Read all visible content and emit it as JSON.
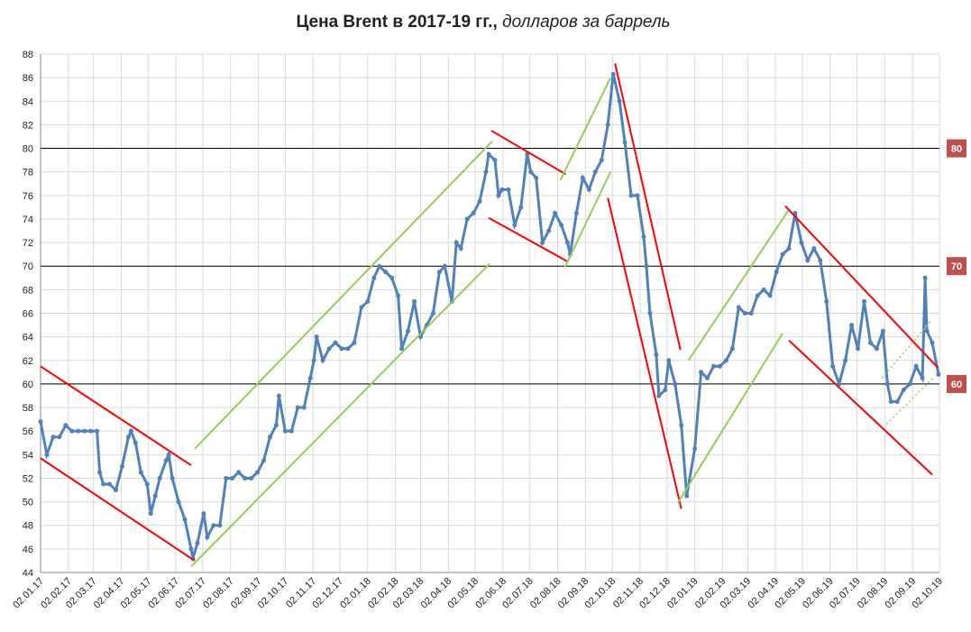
{
  "chart_data": {
    "type": "line",
    "title": "Цена Brent в 2017-19 гг.,",
    "subtitle": "долларов за баррель",
    "x": [
      "02.01.17",
      "09.01.17",
      "16.01.17",
      "23.01.17",
      "30.01.17",
      "06.02.17",
      "13.02.17",
      "20.02.17",
      "27.02.17",
      "06.03.17",
      "09.03.17",
      "13.03.17",
      "20.03.17",
      "27.03.17",
      "03.04.17",
      "10.04.17",
      "13.04.17",
      "18.04.17",
      "24.04.17",
      "01.05.17",
      "05.05.17",
      "10.05.17",
      "15.05.17",
      "22.05.17",
      "25.05.17",
      "29.05.17",
      "05.06.17",
      "12.06.17",
      "19.06.17",
      "21.06.17",
      "26.06.17",
      "03.07.17",
      "07.07.17",
      "14.07.17",
      "21.07.17",
      "28.07.17",
      "04.08.17",
      "11.08.17",
      "18.08.17",
      "25.08.17",
      "01.09.17",
      "08.09.17",
      "15.09.17",
      "22.09.17",
      "25.09.17",
      "02.10.17",
      "09.10.17",
      "16.10.17",
      "23.10.17",
      "30.10.17",
      "03.11.17",
      "06.11.17",
      "13.11.17",
      "20.11.17",
      "27.11.17",
      "04.12.17",
      "11.12.17",
      "18.12.17",
      "26.12.17",
      "02.01.18",
      "09.01.18",
      "15.01.18",
      "22.01.18",
      "29.01.18",
      "05.02.18",
      "09.02.18",
      "16.02.18",
      "23.02.18",
      "02.03.18",
      "09.03.18",
      "16.03.18",
      "23.03.18",
      "29.03.18",
      "06.04.18",
      "11.04.18",
      "16.04.18",
      "23.04.18",
      "30.04.18",
      "07.05.18",
      "14.05.18",
      "17.05.18",
      "24.05.18",
      "28.05.18",
      "01.06.18",
      "08.06.18",
      "15.06.18",
      "22.06.18",
      "29.06.18",
      "03.07.18",
      "09.07.18",
      "16.07.18",
      "23.07.18",
      "30.07.18",
      "06.08.18",
      "13.08.18",
      "16.08.18",
      "23.08.18",
      "30.08.18",
      "06.09.18",
      "13.09.18",
      "20.09.18",
      "27.09.18",
      "03.10.18",
      "10.10.18",
      "16.10.18",
      "23.10.18",
      "30.10.18",
      "06.11.18",
      "09.11.18",
      "13.11.18",
      "20.11.18",
      "23.11.18",
      "30.11.18",
      "04.12.18",
      "11.12.18",
      "18.12.18",
      "24.12.18",
      "02.01.19",
      "09.01.19",
      "16.01.19",
      "23.01.19",
      "30.01.19",
      "06.02.19",
      "13.02.19",
      "20.02.19",
      "27.02.19",
      "06.03.19",
      "13.03.19",
      "20.03.19",
      "27.03.19",
      "03.04.19",
      "10.04.19",
      "17.04.19",
      "24.04.19",
      "01.05.19",
      "08.05.19",
      "15.05.19",
      "22.05.19",
      "29.05.19",
      "05.06.19",
      "12.06.19",
      "19.06.19",
      "26.06.19",
      "03.07.19",
      "10.07.19",
      "17.07.19",
      "24.07.19",
      "31.07.19",
      "05.08.19",
      "09.08.19",
      "16.08.19",
      "23.08.19",
      "30.08.19",
      "06.09.19",
      "13.09.19",
      "16.09.19",
      "18.09.19",
      "24.09.19",
      "01.10.19"
    ],
    "series": [
      {
        "name": "Brent",
        "color": "#4f81bd",
        "values": [
          56.8,
          54,
          55.5,
          55.5,
          56.5,
          56,
          56,
          56,
          56,
          56,
          52.5,
          51.5,
          51.5,
          51,
          53,
          55.5,
          56,
          55,
          52.5,
          51.5,
          49,
          50.5,
          52,
          53.5,
          54,
          52,
          50,
          48.5,
          46,
          45.2,
          46.5,
          49,
          47,
          48,
          48,
          52,
          52,
          52.5,
          52,
          52,
          52.5,
          53.5,
          55.5,
          56.5,
          59,
          56,
          56,
          58,
          58,
          60.5,
          62,
          64,
          62,
          63,
          63.5,
          63,
          63,
          63.5,
          66.5,
          67,
          69,
          70,
          69.5,
          69,
          67.5,
          63,
          64.5,
          67,
          64,
          65,
          66,
          69.5,
          70,
          67,
          72,
          71.5,
          74,
          74.5,
          75.5,
          78,
          79.5,
          79,
          76,
          76.5,
          76.5,
          73.5,
          75,
          79.5,
          78,
          77.5,
          72,
          73,
          74.5,
          73.5,
          72,
          71,
          74.5,
          77.5,
          76.5,
          78,
          79,
          82,
          86.3,
          84,
          80.5,
          76,
          76,
          72.5,
          70,
          66,
          62.5,
          59,
          59.5,
          62,
          60,
          56.5,
          50.5,
          54.5,
          61,
          60.5,
          61.5,
          61.5,
          62,
          63,
          66.5,
          66,
          66,
          67.5,
          68,
          67.5,
          69.5,
          71,
          71.5,
          74.5,
          72,
          70.5,
          71.5,
          70.5,
          67,
          61.5,
          60,
          62,
          65,
          63,
          67,
          63.5,
          63,
          64.5,
          60,
          58.5,
          58.5,
          59.5,
          60,
          61.5,
          60.5,
          69,
          64.5,
          63.5,
          60.8
        ]
      }
    ],
    "xlim": [
      "02.01.17",
      "02.10.19"
    ],
    "xticks": [
      "02.01.17",
      "02.02.17",
      "02.03.17",
      "02.04.17",
      "02.05.17",
      "02.06.17",
      "02.07.17",
      "02.08.17",
      "02.09.17",
      "02.10.17",
      "02.11.17",
      "02.12.17",
      "02.01.18",
      "02.02.18",
      "02.03.18",
      "02.04.18",
      "02.05.18",
      "02.06.18",
      "02.07.18",
      "02.08.18",
      "02.09.18",
      "02.10.18",
      "02.11.18",
      "02.12.18",
      "02.01.19",
      "02.02.19",
      "02.03.19",
      "02.04.19",
      "02.05.19",
      "02.06.19",
      "02.07.19",
      "02.08.19",
      "02.09.19",
      "02.10.19"
    ],
    "ylim": [
      44,
      88
    ],
    "yticks": [
      44,
      46,
      48,
      50,
      52,
      54,
      56,
      58,
      60,
      62,
      64,
      66,
      68,
      70,
      72,
      74,
      76,
      78,
      80,
      82,
      84,
      86,
      88
    ],
    "grid": true,
    "ref_lines": {
      "color": "#c0504d",
      "values": [
        80,
        70,
        60
      ]
    },
    "trend_lines": [
      {
        "color": "#ff0000",
        "x": [
          "02.01.17",
          "19.06.17"
        ],
        "values": [
          61.5,
          53.1
        ]
      },
      {
        "color": "#ff0000",
        "x": [
          "02.01.17",
          "23.06.17"
        ],
        "values": [
          53.7,
          45
        ]
      },
      {
        "color": "#92d050",
        "x": [
          "23.06.17",
          "21.05.18"
        ],
        "values": [
          54.5,
          80.6
        ]
      },
      {
        "color": "#92d050",
        "x": [
          "19.06.17",
          "18.05.18"
        ],
        "values": [
          44.5,
          70.2
        ]
      },
      {
        "color": "#ff0000",
        "x": [
          "20.05.18",
          "11.08.18"
        ],
        "values": [
          81.5,
          77.8
        ]
      },
      {
        "color": "#ff0000",
        "x": [
          "17.05.18",
          "13.08.18"
        ],
        "values": [
          74.1,
          70.4
        ]
      },
      {
        "color": "#92d050",
        "x": [
          "05.08.18",
          "30.09.18"
        ],
        "values": [
          77.3,
          86
        ]
      },
      {
        "color": "#92d050",
        "x": [
          "10.08.18",
          "30.09.18"
        ],
        "values": [
          69.9,
          78
        ]
      },
      {
        "color": "#ff0000",
        "x": [
          "05.10.18",
          "17.12.18"
        ],
        "values": [
          87.2,
          62.9
        ]
      },
      {
        "color": "#ff0000",
        "x": [
          "27.09.18",
          "18.12.18"
        ],
        "values": [
          75.8,
          49.4
        ]
      },
      {
        "color": "#92d050",
        "x": [
          "26.12.18",
          "17.04.19"
        ],
        "values": [
          62,
          74.8
        ]
      },
      {
        "color": "#92d050",
        "x": [
          "14.12.18",
          "10.04.19"
        ],
        "values": [
          49.9,
          64.3
        ]
      },
      {
        "color": "#ff0000",
        "x": [
          "13.04.19",
          "30.09.19"
        ],
        "values": [
          75.1,
          61.4
        ]
      },
      {
        "color": "#ff0000",
        "x": [
          "17.04.19",
          "24.09.19"
        ],
        "values": [
          63.7,
          52.3
        ]
      },
      {
        "color": "#92d050",
        "dash": true,
        "x": [
          "30.07.19",
          "23.09.19"
        ],
        "values": [
          60.5,
          65.4
        ]
      },
      {
        "color": "#92d050",
        "dash": true,
        "x": [
          "04.08.19",
          "25.09.19"
        ],
        "values": [
          56.6,
          60.5
        ]
      }
    ]
  }
}
